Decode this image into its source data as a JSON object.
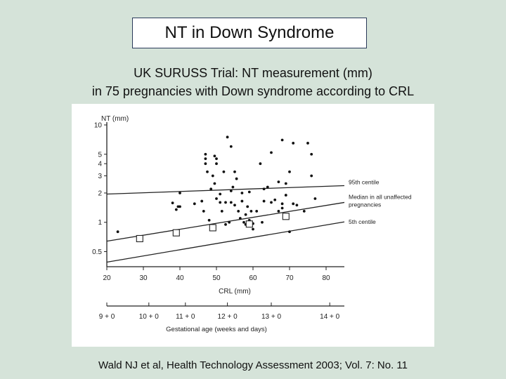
{
  "slide": {
    "title": "NT in Down Syndrome",
    "subtitle_line1": "UK SURUSS Trial: NT measurement (mm)",
    "subtitle_line2": "in 75 pregnancies with Down syndrome according to CRL",
    "citation": "Wald NJ et al, Health Technology Assessment 2003; Vol. 7: No. 11"
  },
  "chart_data": {
    "type": "scatter",
    "ylabel": "NT (mm)",
    "xlabel": "CRL (mm)",
    "x2label": "Gestational age (weeks and days)",
    "y_scale": "log",
    "ylim": [
      0.35,
      10
    ],
    "xlim": [
      20,
      85
    ],
    "y_ticks": [
      {
        "value": 10,
        "label": "10"
      },
      {
        "value": 5,
        "label": "5"
      },
      {
        "value": 4,
        "label": "4"
      },
      {
        "value": 3,
        "label": "3"
      },
      {
        "value": 2,
        "label": "2"
      },
      {
        "value": 1,
        "label": "1"
      },
      {
        "value": 0.5,
        "label": "0.5"
      }
    ],
    "x_ticks": [
      {
        "value": 20,
        "label": "20"
      },
      {
        "value": 30,
        "label": "30"
      },
      {
        "value": 40,
        "label": "40"
      },
      {
        "value": 50,
        "label": "50"
      },
      {
        "value": 60,
        "label": "60"
      },
      {
        "value": 70,
        "label": "70"
      },
      {
        "value": 80,
        "label": "80"
      }
    ],
    "gestational_ticks": [
      {
        "crl": 20,
        "label": "9 + 0"
      },
      {
        "crl": 31.5,
        "label": "10 + 0"
      },
      {
        "crl": 41.5,
        "label": "11 + 0"
      },
      {
        "crl": 53,
        "label": "12 + 0"
      },
      {
        "crl": 65,
        "label": "13 + 0"
      },
      {
        "crl": 81,
        "label": "14 + 0"
      }
    ],
    "reference_lines": [
      {
        "name": "95th centile",
        "x": [
          20,
          85
        ],
        "y": [
          1.95,
          2.38
        ]
      },
      {
        "name": "Median in all unaffected pregnancies",
        "x": [
          20,
          85
        ],
        "y": [
          0.64,
          1.6
        ]
      },
      {
        "name": "5th centile",
        "x": [
          20,
          85
        ],
        "y": [
          0.39,
          1.01
        ]
      }
    ],
    "median_markers": {
      "x": [
        29,
        39,
        49,
        59,
        69
      ],
      "y": [
        0.68,
        0.78,
        0.88,
        0.96,
        1.15
      ]
    },
    "series": [
      {
        "values": [
          [
            23,
            0.8
          ],
          [
            38,
            1.58
          ],
          [
            39,
            1.35
          ],
          [
            39.5,
            1.45
          ],
          [
            40,
            1.45
          ],
          [
            40,
            2.0
          ],
          [
            44,
            1.55
          ],
          [
            46,
            1.65
          ],
          [
            46.5,
            1.3
          ],
          [
            47,
            5.0
          ],
          [
            47,
            4.5
          ],
          [
            47,
            4.0
          ],
          [
            47.5,
            3.3
          ],
          [
            48,
            1.05
          ],
          [
            48.5,
            2.2
          ],
          [
            49,
            3.0
          ],
          [
            49.5,
            4.8
          ],
          [
            49.5,
            2.5
          ],
          [
            50,
            4.5
          ],
          [
            50,
            4.0
          ],
          [
            50,
            1.75
          ],
          [
            51,
            1.95
          ],
          [
            51,
            1.6
          ],
          [
            51.5,
            1.3
          ],
          [
            52,
            3.3
          ],
          [
            52.5,
            1.6
          ],
          [
            52.5,
            0.95
          ],
          [
            53,
            7.5
          ],
          [
            53.5,
            1.0
          ],
          [
            54,
            2.1
          ],
          [
            54,
            1.6
          ],
          [
            54,
            6.0
          ],
          [
            54.5,
            2.3
          ],
          [
            55,
            3.3
          ],
          [
            55,
            1.5
          ],
          [
            55.5,
            2.8
          ],
          [
            56,
            1.3
          ],
          [
            56.5,
            1.1
          ],
          [
            57,
            2.0
          ],
          [
            57,
            1.65
          ],
          [
            57.5,
            1.0
          ],
          [
            58,
            1.2
          ],
          [
            58,
            0.95
          ],
          [
            58.5,
            1.45
          ],
          [
            59,
            1.05
          ],
          [
            59,
            2.05
          ],
          [
            59.5,
            1.3
          ],
          [
            60,
            0.85
          ],
          [
            60,
            0.97
          ],
          [
            61,
            1.3
          ],
          [
            62,
            4.0
          ],
          [
            62.5,
            1.0
          ],
          [
            63,
            1.65
          ],
          [
            63,
            2.2
          ],
          [
            64,
            2.3
          ],
          [
            65,
            5.2
          ],
          [
            65,
            1.6
          ],
          [
            66,
            1.7
          ],
          [
            67,
            2.6
          ],
          [
            67,
            1.3
          ],
          [
            68,
            1.4
          ],
          [
            68,
            1.55
          ],
          [
            68,
            7.0
          ],
          [
            69,
            2.5
          ],
          [
            69,
            1.9
          ],
          [
            70,
            0.8
          ],
          [
            70,
            3.3
          ],
          [
            71,
            1.55
          ],
          [
            71,
            6.5
          ],
          [
            72,
            1.5
          ],
          [
            74,
            1.3
          ],
          [
            75,
            6.5
          ],
          [
            76,
            5.0
          ],
          [
            76,
            3.0
          ],
          [
            77,
            1.75
          ]
        ]
      }
    ]
  }
}
